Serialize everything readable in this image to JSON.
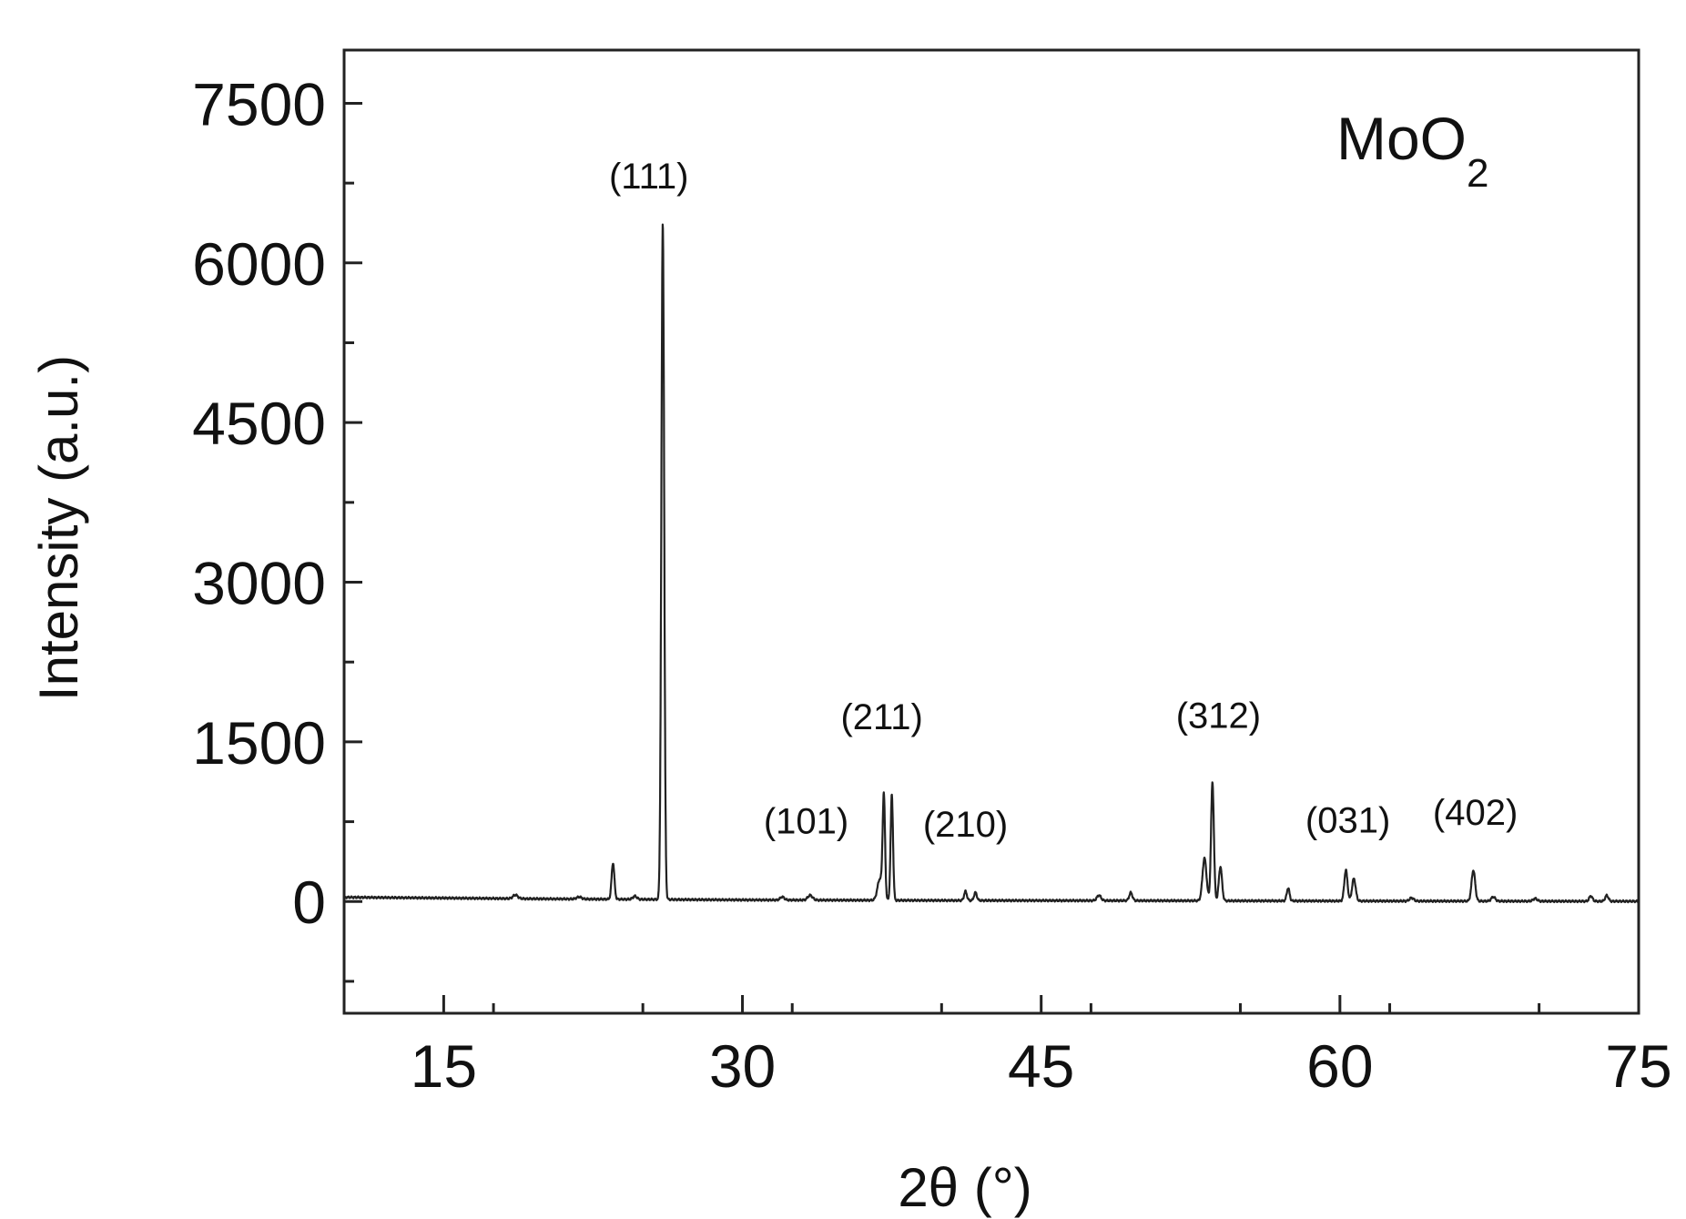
{
  "chart_data": {
    "type": "line",
    "xlabel": "2θ (°)",
    "ylabel": "Intensity (a.u.)",
    "xlim": [
      10,
      75
    ],
    "ylim": [
      -1050,
      8000
    ],
    "x_ticks": [
      15,
      30,
      45,
      60,
      75
    ],
    "y_ticks": [
      0,
      1500,
      3000,
      4500,
      6000,
      7500
    ],
    "x_tick_labels": [
      "15",
      "30",
      "45",
      "60",
      "75"
    ],
    "y_tick_labels": [
      "0",
      "1500",
      "3000",
      "4500",
      "6000",
      "7500"
    ],
    "grid": false,
    "legend": "none",
    "sample_label": {
      "main": "MoO",
      "subscript": "2"
    },
    "series": [
      {
        "color": "#222222",
        "baseline": [
          [
            10,
            40
          ],
          [
            20,
            25
          ],
          [
            30,
            15
          ],
          [
            40,
            10
          ],
          [
            50,
            8
          ],
          [
            60,
            5
          ],
          [
            70,
            3
          ],
          [
            75,
            2
          ]
        ],
        "peaks": [
          {
            "x": 18.6,
            "y": 35,
            "width": 0.12
          },
          {
            "x": 21.8,
            "y": 20,
            "width": 0.12
          },
          {
            "x": 23.5,
            "y": 340,
            "width": 0.07
          },
          {
            "x": 24.6,
            "y": 30,
            "width": 0.1
          },
          {
            "x": 26.0,
            "y": 6350,
            "width": 0.07
          },
          {
            "x": 32.0,
            "y": 30,
            "width": 0.1
          },
          {
            "x": 33.4,
            "y": 45,
            "width": 0.12
          },
          {
            "x": 36.9,
            "y": 200,
            "width": 0.12
          },
          {
            "x": 37.1,
            "y": 960,
            "width": 0.06
          },
          {
            "x": 37.5,
            "y": 990,
            "width": 0.06
          },
          {
            "x": 41.2,
            "y": 85,
            "width": 0.07
          },
          {
            "x": 41.7,
            "y": 75,
            "width": 0.07
          },
          {
            "x": 47.9,
            "y": 50,
            "width": 0.1
          },
          {
            "x": 49.5,
            "y": 75,
            "width": 0.08
          },
          {
            "x": 53.2,
            "y": 400,
            "width": 0.1
          },
          {
            "x": 53.6,
            "y": 1110,
            "width": 0.07
          },
          {
            "x": 54.0,
            "y": 320,
            "width": 0.08
          },
          {
            "x": 57.4,
            "y": 120,
            "width": 0.07
          },
          {
            "x": 60.3,
            "y": 290,
            "width": 0.08
          },
          {
            "x": 60.7,
            "y": 210,
            "width": 0.09
          },
          {
            "x": 63.6,
            "y": 30,
            "width": 0.1
          },
          {
            "x": 66.7,
            "y": 290,
            "width": 0.09
          },
          {
            "x": 67.7,
            "y": 40,
            "width": 0.1
          },
          {
            "x": 69.8,
            "y": 25,
            "width": 0.1
          },
          {
            "x": 72.6,
            "y": 50,
            "width": 0.08
          },
          {
            "x": 73.4,
            "y": 55,
            "width": 0.08
          }
        ]
      }
    ],
    "annotations": [
      {
        "text": "(111)",
        "x": 25.3,
        "y": 6700
      },
      {
        "text": "(101)",
        "x": 33.2,
        "y": 640
      },
      {
        "text": "(211)",
        "x": 37.0,
        "y": 1620
      },
      {
        "text": "(210)",
        "x": 41.2,
        "y": 610
      },
      {
        "text": "(312)",
        "x": 53.9,
        "y": 1630
      },
      {
        "text": "(031)",
        "x": 60.4,
        "y": 650
      },
      {
        "text": "(402)",
        "x": 66.8,
        "y": 720
      }
    ]
  }
}
